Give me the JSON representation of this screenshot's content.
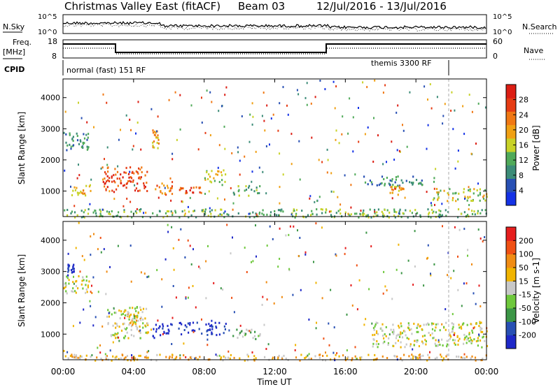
{
  "header": {
    "title": "Christmas Valley East (fitACF)",
    "beam": "Beam 03",
    "date_range": "12/Jul/2016 - 13/Jul/2016"
  },
  "panels": {
    "nsky": {
      "label": "N.Sky",
      "left_ticks": [
        "10^5",
        "10^0"
      ],
      "right_ticks": [
        "10^5",
        "10^0"
      ],
      "right_label": "N.Search"
    },
    "freq": {
      "label_line1": "Freq.",
      "label_line2": "[MHz]",
      "left_ticks": [
        "18",
        "8"
      ],
      "right_ticks": [
        "60",
        "0"
      ],
      "right_label": "Nave"
    },
    "cpid": {
      "label": "CPID",
      "mode1": "normal (fast) 151 RF",
      "mode2": "themis 3300 RF"
    }
  },
  "colors": {
    "power_scale": [
      "#1432e6",
      "#2850b4",
      "#3c8c78",
      "#50aa5a",
      "#c8d228",
      "#f0a014",
      "#f07814",
      "#e63c14",
      "#dc1e14"
    ],
    "velocity_scale": [
      "#1e28c8",
      "#2850b4",
      "#3c9646",
      "#6ec83c",
      "#c8c8c8",
      "#f0b400",
      "#f08c14",
      "#f05014",
      "#e61e1e"
    ]
  },
  "chart_data": [
    {
      "type": "heatmap",
      "quantity": "Power",
      "ylabel": "Slant Range [km]",
      "xlabel": "Time UT",
      "x_ticks": [
        "00:00",
        "04:00",
        "08:00",
        "12:00",
        "16:00",
        "20:00",
        "00:00"
      ],
      "y_ticks": [
        1000,
        2000,
        3000,
        4000
      ],
      "ylim": [
        180,
        4600
      ],
      "xlim_hours": [
        0,
        24
      ],
      "colorbar_label": "Power [dB]",
      "colorbar_ticks": [
        4,
        8,
        12,
        16,
        20,
        24,
        28
      ],
      "colorbar_range": [
        0,
        32
      ],
      "echo_regions": [
        {
          "t0": 0.0,
          "t1": 1.5,
          "r0": 2300,
          "r1": 2900,
          "level": 2
        },
        {
          "t0": 0.4,
          "t1": 1.6,
          "r0": 850,
          "r1": 1250,
          "level": 5
        },
        {
          "t0": 2.2,
          "t1": 4.8,
          "r0": 1000,
          "r1": 1800,
          "level": 7
        },
        {
          "t0": 5.2,
          "t1": 6.2,
          "r0": 900,
          "r1": 1300,
          "level": 6
        },
        {
          "t0": 6.5,
          "t1": 8.0,
          "r0": 950,
          "r1": 1250,
          "level": 7
        },
        {
          "t0": 8.0,
          "t1": 9.2,
          "r0": 1200,
          "r1": 1700,
          "level": 4
        },
        {
          "t0": 9.6,
          "t1": 11.2,
          "r0": 850,
          "r1": 1200,
          "level": 3
        },
        {
          "t0": 5.0,
          "t1": 5.4,
          "r0": 2400,
          "r1": 3000,
          "level": 5
        },
        {
          "t0": 17.0,
          "t1": 21.0,
          "r0": 1200,
          "r1": 1500,
          "level": 2
        },
        {
          "t0": 18.5,
          "t1": 19.3,
          "r0": 900,
          "r1": 1200,
          "level": 5
        },
        {
          "t0": 20.8,
          "t1": 24.0,
          "r0": 700,
          "r1": 1100,
          "level": 4
        },
        {
          "t0": 0.0,
          "t1": 24.0,
          "r0": 180,
          "r1": 450,
          "level": 3
        }
      ]
    },
    {
      "type": "heatmap",
      "quantity": "Velocity",
      "ylabel": "Slant Range [km]",
      "xlabel": "Time UT",
      "x_ticks": [
        "00:00",
        "04:00",
        "08:00",
        "12:00",
        "16:00",
        "20:00",
        "00:00"
      ],
      "y_ticks": [
        1000,
        2000,
        3000,
        4000
      ],
      "ylim": [
        180,
        4600
      ],
      "xlim_hours": [
        0,
        24
      ],
      "colorbar_label": "Velocity [m s-1]",
      "colorbar_ticks": [
        "200",
        "100",
        "50",
        "15",
        "-15",
        "-50",
        "-100",
        "-200"
      ],
      "echo_regions": [
        {
          "t0": 0.0,
          "t1": 1.5,
          "r0": 2300,
          "r1": 2900,
          "level": 4
        },
        {
          "t0": 0.2,
          "t1": 0.6,
          "r0": 2900,
          "r1": 3300,
          "level": 0
        },
        {
          "t0": 2.4,
          "t1": 4.8,
          "r0": 900,
          "r1": 1900,
          "level": 4
        },
        {
          "t0": 3.6,
          "t1": 4.4,
          "r0": 1100,
          "r1": 1700,
          "level": 5
        },
        {
          "t0": 5.0,
          "t1": 6.2,
          "r0": 900,
          "r1": 1400,
          "level": 0
        },
        {
          "t0": 6.5,
          "t1": 9.2,
          "r0": 1000,
          "r1": 1400,
          "level": 0
        },
        {
          "t0": 9.6,
          "t1": 11.2,
          "r0": 850,
          "r1": 1200,
          "level": 3
        },
        {
          "t0": 17.5,
          "t1": 24.0,
          "r0": 600,
          "r1": 1400,
          "level": 4
        },
        {
          "t0": 0.0,
          "t1": 24.0,
          "r0": 180,
          "r1": 380,
          "level": 5
        }
      ]
    }
  ]
}
